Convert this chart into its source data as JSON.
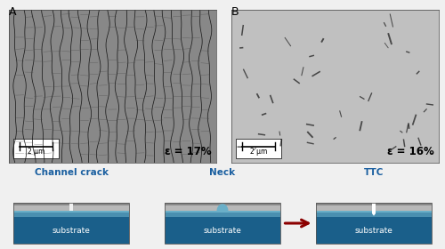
{
  "panel_A_label": "A",
  "panel_B_label": "B",
  "epsilon_A": "ε = 17%",
  "epsilon_B": "ε = 16%",
  "scale_label": "2 μm",
  "diagram_labels": [
    "Channel crack",
    "Neck",
    "TTC"
  ],
  "substrate_text": "substrate",
  "substrate_color_bot": "#1a5f8a",
  "substrate_color_top": "#4a8fb0",
  "substrate_color_stripe": "#6aafc8",
  "film_color_light": "#b8b8b8",
  "film_color_dark": "#888888",
  "bg_color": "#f0f0f0",
  "arrow_color": "#8b0000",
  "label_color": "#1a5fa0",
  "panel_A_bg": "#888888",
  "panel_B_bg": "#c0c0c0",
  "crack_color": "#1a1a1a",
  "border_color": "#444444"
}
